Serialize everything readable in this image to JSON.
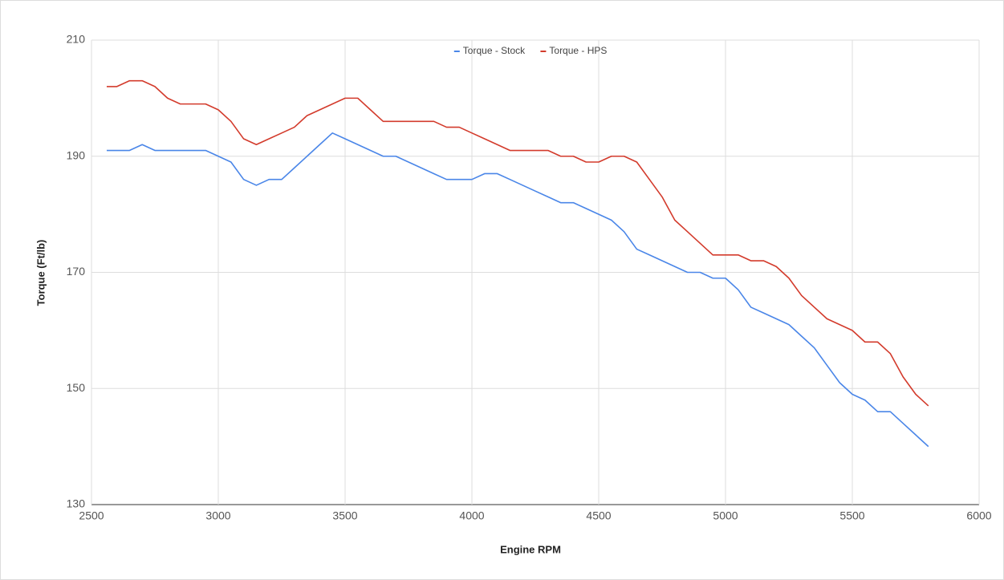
{
  "chart_data": {
    "type": "line",
    "x_label": "Engine RPM",
    "y_label": "Torque (Ft/lb)",
    "x": [
      2560,
      2600,
      2650,
      2700,
      2750,
      2800,
      2850,
      2900,
      2950,
      3000,
      3050,
      3100,
      3150,
      3200,
      3250,
      3300,
      3350,
      3400,
      3450,
      3500,
      3550,
      3600,
      3650,
      3700,
      3750,
      3800,
      3850,
      3900,
      3950,
      4000,
      4050,
      4100,
      4150,
      4200,
      4250,
      4300,
      4350,
      4400,
      4450,
      4500,
      4550,
      4600,
      4650,
      4700,
      4750,
      4800,
      4850,
      4900,
      4950,
      5000,
      5050,
      5100,
      5150,
      5200,
      5250,
      5300,
      5350,
      5400,
      5450,
      5500,
      5550,
      5600,
      5650,
      5700,
      5750,
      5800
    ],
    "series": [
      {
        "name": "Torque - Stock",
        "color": "#4a86e8",
        "values": [
          191,
          191,
          191,
          192,
          191,
          191,
          191,
          191,
          191,
          190,
          189,
          186,
          185,
          186,
          186,
          188,
          190,
          192,
          194,
          193,
          192,
          191,
          190,
          190,
          189,
          188,
          187,
          186,
          186,
          186,
          187,
          187,
          186,
          185,
          184,
          183,
          182,
          182,
          181,
          180,
          179,
          177,
          174,
          173,
          172,
          171,
          170,
          170,
          169,
          169,
          167,
          164,
          163,
          162,
          161,
          159,
          157,
          154,
          151,
          149,
          148,
          146,
          146,
          144,
          142,
          140
        ]
      },
      {
        "name": "Torque - HPS",
        "color": "#d33b2c",
        "values": [
          202,
          202,
          203,
          203,
          202,
          200,
          199,
          199,
          199,
          198,
          196,
          193,
          192,
          193,
          194,
          195,
          197,
          198,
          199,
          200,
          200,
          198,
          196,
          196,
          196,
          196,
          196,
          195,
          195,
          194,
          193,
          192,
          191,
          191,
          191,
          191,
          190,
          190,
          189,
          189,
          190,
          190,
          189,
          186,
          183,
          179,
          177,
          175,
          173,
          173,
          173,
          172,
          172,
          171,
          169,
          166,
          164,
          162,
          161,
          160,
          158,
          158,
          156,
          152,
          149,
          147
        ]
      }
    ],
    "xlim": [
      2500,
      6000
    ],
    "xticks": [
      2500,
      3000,
      3500,
      4000,
      4500,
      5000,
      5500,
      6000
    ],
    "ylim": [
      130,
      210
    ],
    "yticks": [
      130,
      150,
      170,
      190,
      210
    ],
    "grid": true,
    "legend": "top"
  }
}
